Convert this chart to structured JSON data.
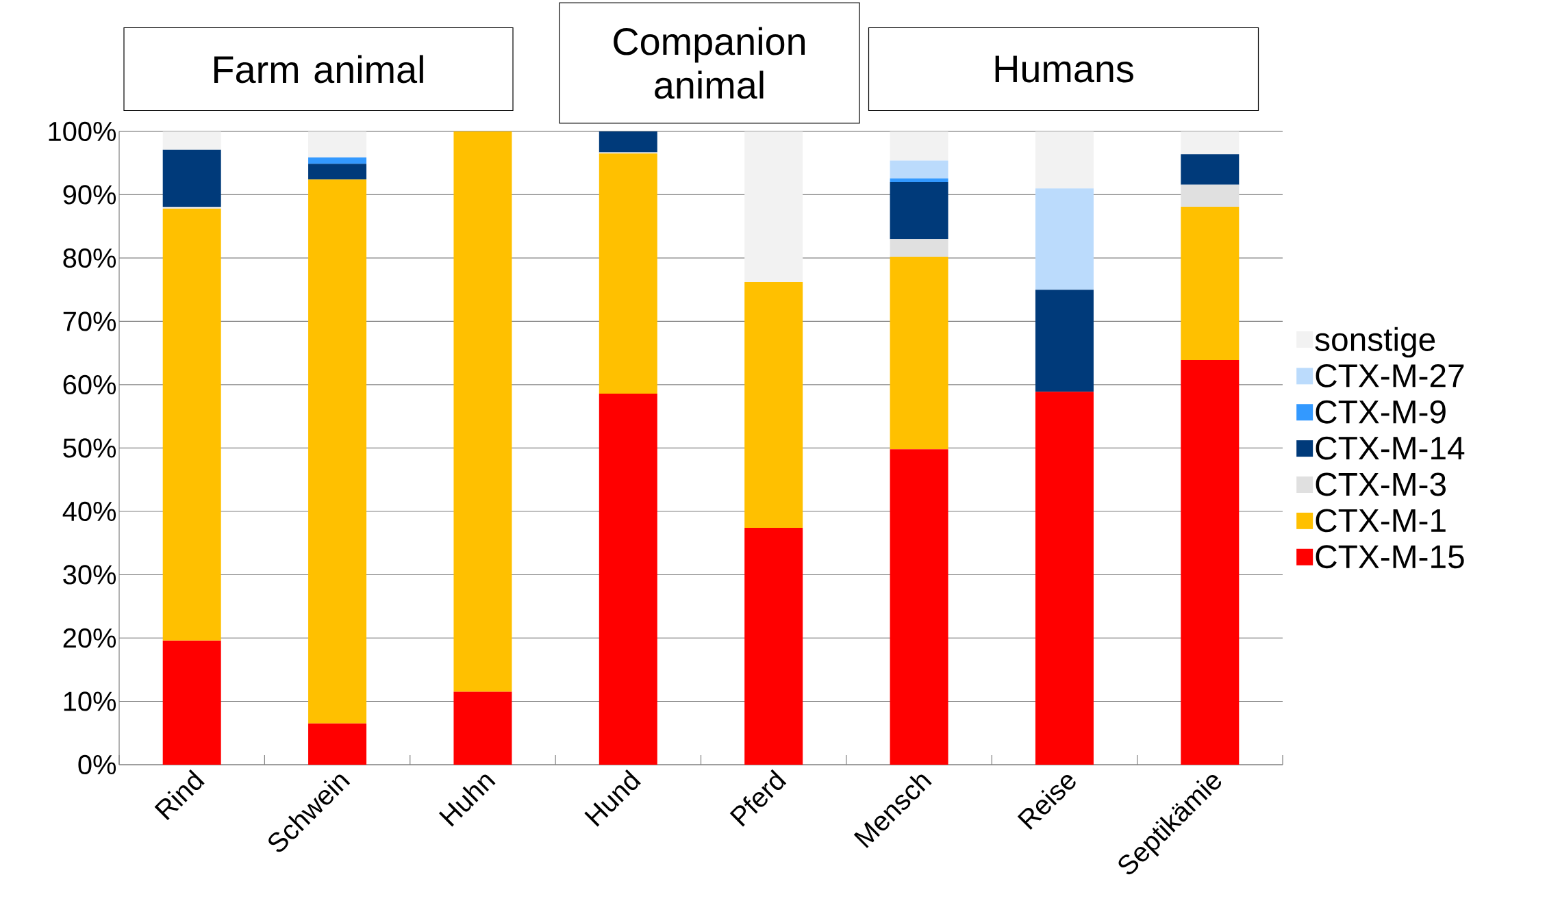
{
  "chart_data": {
    "type": "bar",
    "stacked": true,
    "categories": [
      "Rind",
      "Schwein",
      "Huhn",
      "Hund",
      "Pferd",
      "Mensch",
      "Reise",
      "Septikämie"
    ],
    "series": [
      {
        "name": "CTX-M-15",
        "color": "#ff0000",
        "values": [
          19.6,
          6.5,
          11.5,
          58.6,
          37.4,
          49.8,
          58.9,
          63.9
        ]
      },
      {
        "name": "CTX-M-1",
        "color": "#ffc000",
        "values": [
          68.2,
          85.9,
          88.5,
          37.9,
          38.8,
          30.4,
          0,
          24.2
        ]
      },
      {
        "name": "CTX-M-3",
        "color": "#e0e0e0",
        "values": [
          0.3,
          0,
          0,
          0.2,
          0,
          2.8,
          0,
          3.5
        ]
      },
      {
        "name": "CTX-M-14",
        "color": "#003a7a",
        "values": [
          9.0,
          2.5,
          0,
          3.3,
          0,
          9.0,
          16.1,
          4.8
        ]
      },
      {
        "name": "CTX-M-9",
        "color": "#3399ff",
        "values": [
          0,
          1.0,
          0,
          0,
          0,
          0.6,
          0,
          0
        ]
      },
      {
        "name": "CTX-M-27",
        "color": "#bbdbfc",
        "values": [
          0,
          0,
          0,
          0,
          0,
          2.8,
          16.0,
          0
        ]
      },
      {
        "name": "sonstige",
        "color": "#f2f2f2",
        "values": [
          2.9,
          4.1,
          0,
          0,
          23.8,
          4.6,
          9.0,
          3.6
        ]
      }
    ],
    "ylim": [
      0,
      100
    ],
    "yticks": [
      {
        "value": 0,
        "label": "0%"
      },
      {
        "value": 10,
        "label": "10%"
      },
      {
        "value": 20,
        "label": "20%"
      },
      {
        "value": 30,
        "label": "30%"
      },
      {
        "value": 40,
        "label": "40%"
      },
      {
        "value": 50,
        "label": "50%"
      },
      {
        "value": 60,
        "label": "60%"
      },
      {
        "value": 70,
        "label": "70%"
      },
      {
        "value": 80,
        "label": "80%"
      },
      {
        "value": 90,
        "label": "90%"
      },
      {
        "value": 100,
        "label": "100%"
      }
    ],
    "grid": "y",
    "legend": "right",
    "annotations": [
      "Farm animal",
      "Companion animal",
      "Humans"
    ]
  }
}
